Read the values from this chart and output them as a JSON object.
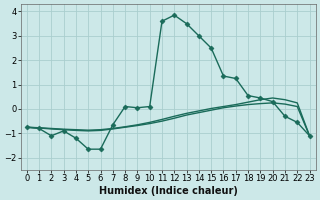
{
  "xlabel": "Humidex (Indice chaleur)",
  "bg_color": "#cce8e8",
  "line_color": "#1a6b5a",
  "grid_color": "#aacece",
  "xlim": [
    -0.5,
    23.5
  ],
  "ylim": [
    -2.5,
    4.3
  ],
  "xticks": [
    0,
    1,
    2,
    3,
    4,
    5,
    6,
    7,
    8,
    9,
    10,
    11,
    12,
    13,
    14,
    15,
    16,
    17,
    18,
    19,
    20,
    21,
    22,
    23
  ],
  "yticks": [
    -2,
    -1,
    0,
    1,
    2,
    3,
    4
  ],
  "line1_x": [
    0,
    1,
    2,
    3,
    4,
    5,
    6,
    7,
    8,
    9,
    10,
    11,
    12,
    13,
    14,
    15,
    16,
    17,
    18,
    19,
    20,
    21,
    22,
    23
  ],
  "line1_y": [
    -0.75,
    -0.8,
    -1.1,
    -0.9,
    -1.2,
    -1.65,
    -1.65,
    -0.65,
    0.1,
    0.05,
    0.1,
    3.6,
    3.85,
    3.5,
    3.0,
    2.5,
    1.35,
    1.25,
    0.55,
    0.45,
    0.3,
    -0.3,
    -0.55,
    -1.1
  ],
  "line2_x": [
    0,
    1,
    2,
    3,
    4,
    5,
    6,
    7,
    8,
    9,
    10,
    11,
    12,
    13,
    14,
    15,
    16,
    17,
    18,
    19,
    20,
    21,
    22,
    23
  ],
  "line2_y": [
    -0.75,
    -0.78,
    -0.82,
    -0.85,
    -0.88,
    -0.9,
    -0.88,
    -0.82,
    -0.75,
    -0.68,
    -0.6,
    -0.5,
    -0.38,
    -0.25,
    -0.15,
    -0.05,
    0.05,
    0.12,
    0.18,
    0.22,
    0.25,
    0.2,
    0.1,
    -1.1
  ],
  "line3_x": [
    0,
    1,
    2,
    3,
    4,
    5,
    6,
    7,
    8,
    9,
    10,
    11,
    12,
    13,
    14,
    15,
    16,
    17,
    18,
    19,
    20,
    21,
    22,
    23
  ],
  "line3_y": [
    -0.75,
    -0.77,
    -0.8,
    -0.83,
    -0.85,
    -0.87,
    -0.85,
    -0.8,
    -0.73,
    -0.65,
    -0.55,
    -0.43,
    -0.3,
    -0.18,
    -0.08,
    0.02,
    0.1,
    0.18,
    0.28,
    0.38,
    0.45,
    0.38,
    0.25,
    -1.1
  ],
  "marker": "D",
  "markersize": 2.5,
  "linewidth": 1.0,
  "tick_fontsize": 6.0,
  "xlabel_fontsize": 7.0
}
